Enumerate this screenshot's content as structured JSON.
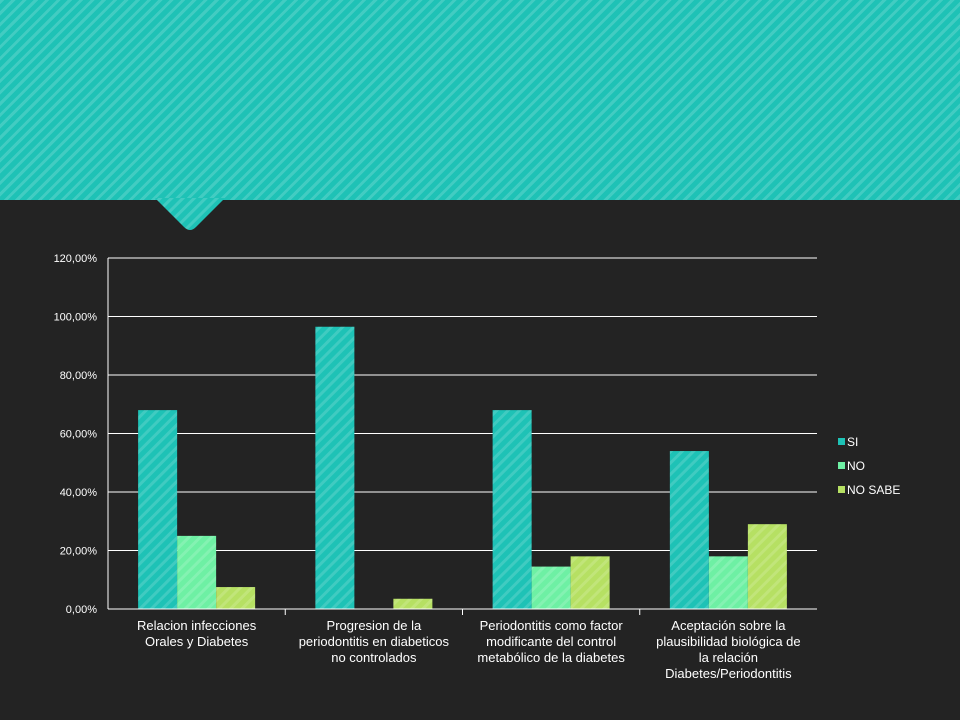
{
  "chart_data": {
    "type": "bar",
    "title": "",
    "xlabel": "",
    "ylabel": "",
    "ylim": [
      0,
      1.2
    ],
    "yticks": [
      "0,00%",
      "20,00%",
      "40,00%",
      "60,00%",
      "80,00%",
      "100,00%",
      "120,00%"
    ],
    "grid": true,
    "legend_position": "right",
    "categories": [
      [
        "Relacion infecciones",
        "Orales y Diabetes"
      ],
      [
        "Progresion de la",
        "periodontitis en diabeticos",
        "no controlados"
      ],
      [
        "Periodontitis como factor",
        "modificante del control",
        "metabólico de la diabetes"
      ],
      [
        "Aceptación sobre la",
        "plausibilidad biológica de",
        "la relación",
        "Diabetes/Periodontitis"
      ]
    ],
    "series": [
      {
        "name": "SI",
        "color": "#1ec2b6",
        "values": [
          0.68,
          0.965,
          0.68,
          0.54
        ]
      },
      {
        "name": "NO",
        "color": "#6ef0a4",
        "values": [
          0.25,
          0,
          0.145,
          0.18
        ]
      },
      {
        "name": "NO SABE",
        "color": "#b6e063",
        "values": [
          0.075,
          0.035,
          0.18,
          0.29
        ]
      }
    ]
  }
}
